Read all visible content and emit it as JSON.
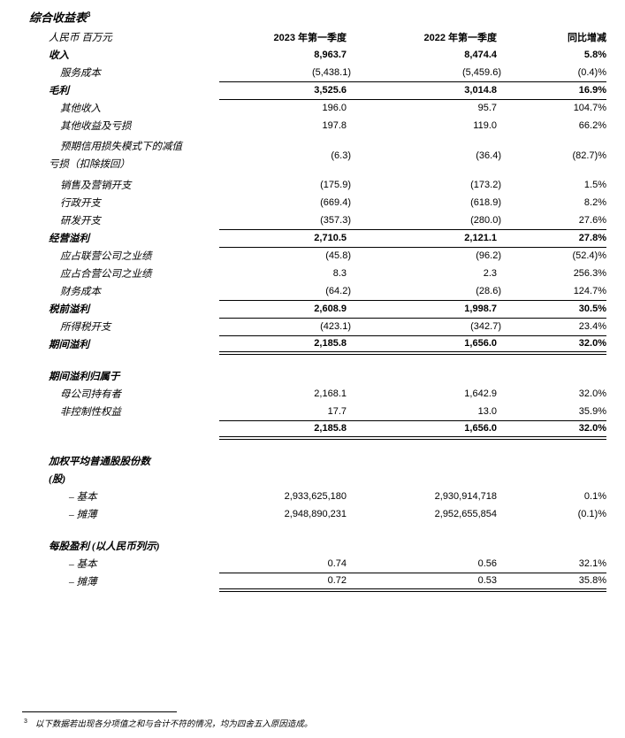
{
  "page": {
    "title": "综合收益表",
    "title_footnote_ref": "3"
  },
  "table": {
    "header": {
      "metric": "人民币 百万元",
      "q1_2023": "2023 年第一季度",
      "q1_2022": "2022 年第一季度",
      "yoy": "同比增减"
    },
    "rows": [
      {
        "label": "收入",
        "q1_2023": "8,963.7",
        "q1_2022": "8,474.4",
        "yoy": "5.8%",
        "bold": true,
        "indent": 0
      },
      {
        "label": "服务成本",
        "q1_2023": "(5,438.1)",
        "q1_2022": "(5,459.6)",
        "yoy": "(0.4)%",
        "indent": 1,
        "rule": "rb"
      },
      {
        "label": "毛利",
        "q1_2023": "3,525.6",
        "q1_2022": "3,014.8",
        "yoy": "16.9%",
        "bold": true,
        "indent": 0,
        "rule": "rb"
      },
      {
        "label": "其他收入",
        "q1_2023": "196.0",
        "q1_2022": "95.7",
        "yoy": "104.7%",
        "indent": 1
      },
      {
        "label": "其他收益及亏损",
        "q1_2023": "197.8",
        "q1_2022": "119.0",
        "yoy": "66.2%",
        "indent": 1
      },
      {
        "label": "预期信用损失模式下的减值",
        "label2": "亏损（扣除拨回）",
        "q1_2023": "(6.3)",
        "q1_2022": "(36.4)",
        "yoy": "(82.7)%",
        "indent": 1,
        "tall": true
      },
      {
        "label": "销售及营销开支",
        "q1_2023": "(175.9)",
        "q1_2022": "(173.2)",
        "yoy": "1.5%",
        "indent": 1
      },
      {
        "label": "行政开支",
        "q1_2023": "(669.4)",
        "q1_2022": "(618.9)",
        "yoy": "8.2%",
        "indent": 1
      },
      {
        "label": "研发开支",
        "q1_2023": "(357.3)",
        "q1_2022": "(280.0)",
        "yoy": "27.6%",
        "indent": 1,
        "rule": "rb"
      },
      {
        "label": "经营溢利",
        "q1_2023": "2,710.5",
        "q1_2022": "2,121.1",
        "yoy": "27.8%",
        "bold": true,
        "indent": 0,
        "rule": "rb"
      },
      {
        "label": "应占联营公司之业绩",
        "q1_2023": "(45.8)",
        "q1_2022": "(96.2)",
        "yoy": "(52.4)%",
        "indent": 1
      },
      {
        "label": "应占合营公司之业绩",
        "q1_2023": "8.3",
        "q1_2022": "2.3",
        "yoy": "256.3%",
        "indent": 1
      },
      {
        "label": "财务成本",
        "q1_2023": "(64.2)",
        "q1_2022": "(28.6)",
        "yoy": "124.7%",
        "indent": 1,
        "rule": "rb"
      },
      {
        "label": "税前溢利",
        "q1_2023": "2,608.9",
        "q1_2022": "1,998.7",
        "yoy": "30.5%",
        "bold": true,
        "indent": 0,
        "rule": "rb"
      },
      {
        "label": "所得税开支",
        "q1_2023": "(423.1)",
        "q1_2022": "(342.7)",
        "yoy": "23.4%",
        "indent": 1,
        "rule": "rb"
      },
      {
        "label": "期间溢利",
        "q1_2023": "2,185.8",
        "q1_2022": "1,656.0",
        "yoy": "32.0%",
        "bold": true,
        "indent": 0,
        "rule": "rd"
      },
      {
        "spacer": true
      },
      {
        "label": "期间溢利归属于",
        "bold": true,
        "indent": 0
      },
      {
        "label": "母公司持有者",
        "q1_2023": "2,168.1",
        "q1_2022": "1,642.9",
        "yoy": "32.0%",
        "indent": 1
      },
      {
        "label": "非控制性权益",
        "q1_2023": "17.7",
        "q1_2022": "13.0",
        "yoy": "35.9%",
        "indent": 1,
        "rule": "rb"
      },
      {
        "label": "",
        "q1_2023": "2,185.8",
        "q1_2022": "1,656.0",
        "yoy": "32.0%",
        "bold": true,
        "indent": 0,
        "rule": "rd"
      },
      {
        "spacer": true
      },
      {
        "label": "加权平均普通股股份数",
        "bold": true,
        "indent": 0
      },
      {
        "label": "(股)",
        "bold": true,
        "indent": 0
      },
      {
        "label": "– 基本",
        "q1_2023": "2,933,625,180",
        "q1_2022": "2,930,914,718",
        "yoy": "0.1%",
        "indent": 2
      },
      {
        "label": "– 摊薄",
        "q1_2023": "2,948,890,231",
        "q1_2022": "2,952,655,854",
        "yoy": "(0.1)%",
        "indent": 2
      },
      {
        "spacer": true
      },
      {
        "label": "每股盈利 (以人民币列示)",
        "bold": true,
        "indent": 0
      },
      {
        "label": "– 基本",
        "q1_2023": "0.74",
        "q1_2022": "0.56",
        "yoy": "32.1%",
        "indent": 2,
        "rule": "rb"
      },
      {
        "label": "– 摊薄",
        "q1_2023": "0.72",
        "q1_2022": "0.53",
        "yoy": "35.8%",
        "indent": 2,
        "rule": "rd"
      }
    ]
  },
  "footnote": {
    "ref": "3",
    "text": "以下数据若出现各分项值之和与合计不符的情况，均为四舍五入原因造成。"
  }
}
